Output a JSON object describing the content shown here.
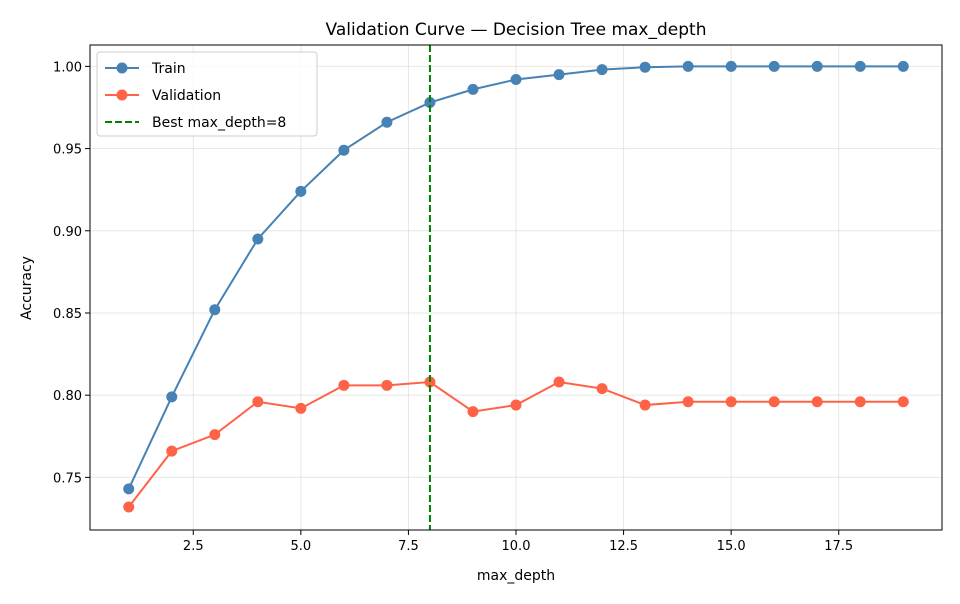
{
  "chart_data": {
    "type": "line",
    "title": "Validation Curve — Decision Tree max_depth",
    "xlabel": "max_depth",
    "ylabel": "Accuracy",
    "xlim": [
      0.1,
      19.9
    ],
    "ylim": [
      0.718,
      1.013
    ],
    "xticks": [
      2.5,
      5.0,
      7.5,
      10.0,
      12.5,
      15.0,
      17.5
    ],
    "xtick_labels": [
      "2.5",
      "5.0",
      "7.5",
      "10.0",
      "12.5",
      "15.0",
      "17.5"
    ],
    "yticks": [
      0.75,
      0.8,
      0.85,
      0.9,
      0.95,
      1.0
    ],
    "ytick_labels": [
      "0.75",
      "0.80",
      "0.85",
      "0.90",
      "0.95",
      "1.00"
    ],
    "grid": true,
    "legend_position": "top-left",
    "x": [
      1,
      2,
      3,
      4,
      5,
      6,
      7,
      8,
      9,
      10,
      11,
      12,
      13,
      14,
      15,
      16,
      17,
      18,
      19
    ],
    "series": [
      {
        "name": "Train",
        "color": "#4682b4",
        "marker": "circle",
        "values": [
          0.743,
          0.799,
          0.852,
          0.895,
          0.924,
          0.949,
          0.966,
          0.978,
          0.986,
          0.992,
          0.995,
          0.998,
          0.9995,
          1.0,
          1.0,
          1.0,
          1.0,
          1.0,
          1.0
        ]
      },
      {
        "name": "Validation",
        "color": "#ff6347",
        "marker": "circle",
        "values": [
          0.732,
          0.766,
          0.776,
          0.796,
          0.792,
          0.806,
          0.806,
          0.808,
          0.79,
          0.794,
          0.808,
          0.804,
          0.794,
          0.796,
          0.796,
          0.796,
          0.796,
          0.796,
          0.796
        ]
      }
    ],
    "vline": {
      "x": 8,
      "label": "Best max_depth=8",
      "color": "#008000",
      "style": "dashed"
    }
  }
}
